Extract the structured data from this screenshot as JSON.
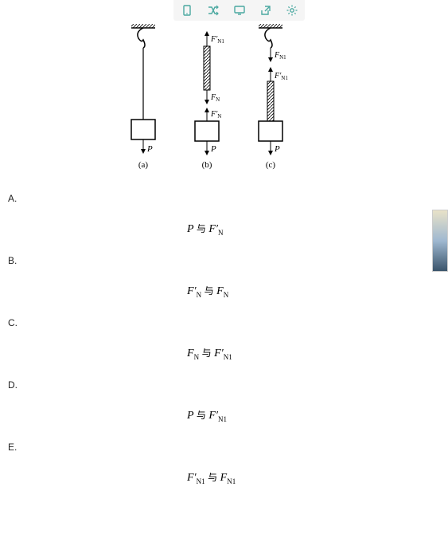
{
  "toolbar": {
    "icons": [
      "device-icon",
      "shuffle-icon",
      "monitor-icon",
      "share-icon",
      "gear-icon"
    ],
    "icon_color": "#4aa8a0",
    "bg_color": "#f5f5f5"
  },
  "diagram": {
    "captions": [
      "(a)",
      "(b)",
      "(c)"
    ],
    "labels": {
      "P": "P",
      "FN": "F",
      "FNp": "F′",
      "FN1": "F",
      "FN1p": "F′"
    }
  },
  "options": [
    {
      "label": "A.",
      "formula_html": "<i>P</i> <span class='yu'>与</span> <i>F′</i><span class='sub'>N</span>"
    },
    {
      "label": "B.",
      "formula_html": "<i>F′</i><span class='sub'>N</span> <span class='yu'>与</span> <i>F</i><span class='sub'>N</span>"
    },
    {
      "label": "C.",
      "formula_html": "<i>F</i><span class='sub'>N</span> <span class='yu'>与</span> <i>F′</i><span class='sub'>N1</span>"
    },
    {
      "label": "D.",
      "formula_html": "<i>P</i> <span class='yu'>与</span> <i>F′</i><span class='sub'>N1</span>"
    },
    {
      "label": "E.",
      "formula_html": "<i>F′</i><span class='sub'>N1</span> <span class='yu'>与</span> <i>F</i><span class='sub'>N1</span>"
    }
  ],
  "colors": {
    "text": "#222222",
    "line": "#000000"
  }
}
